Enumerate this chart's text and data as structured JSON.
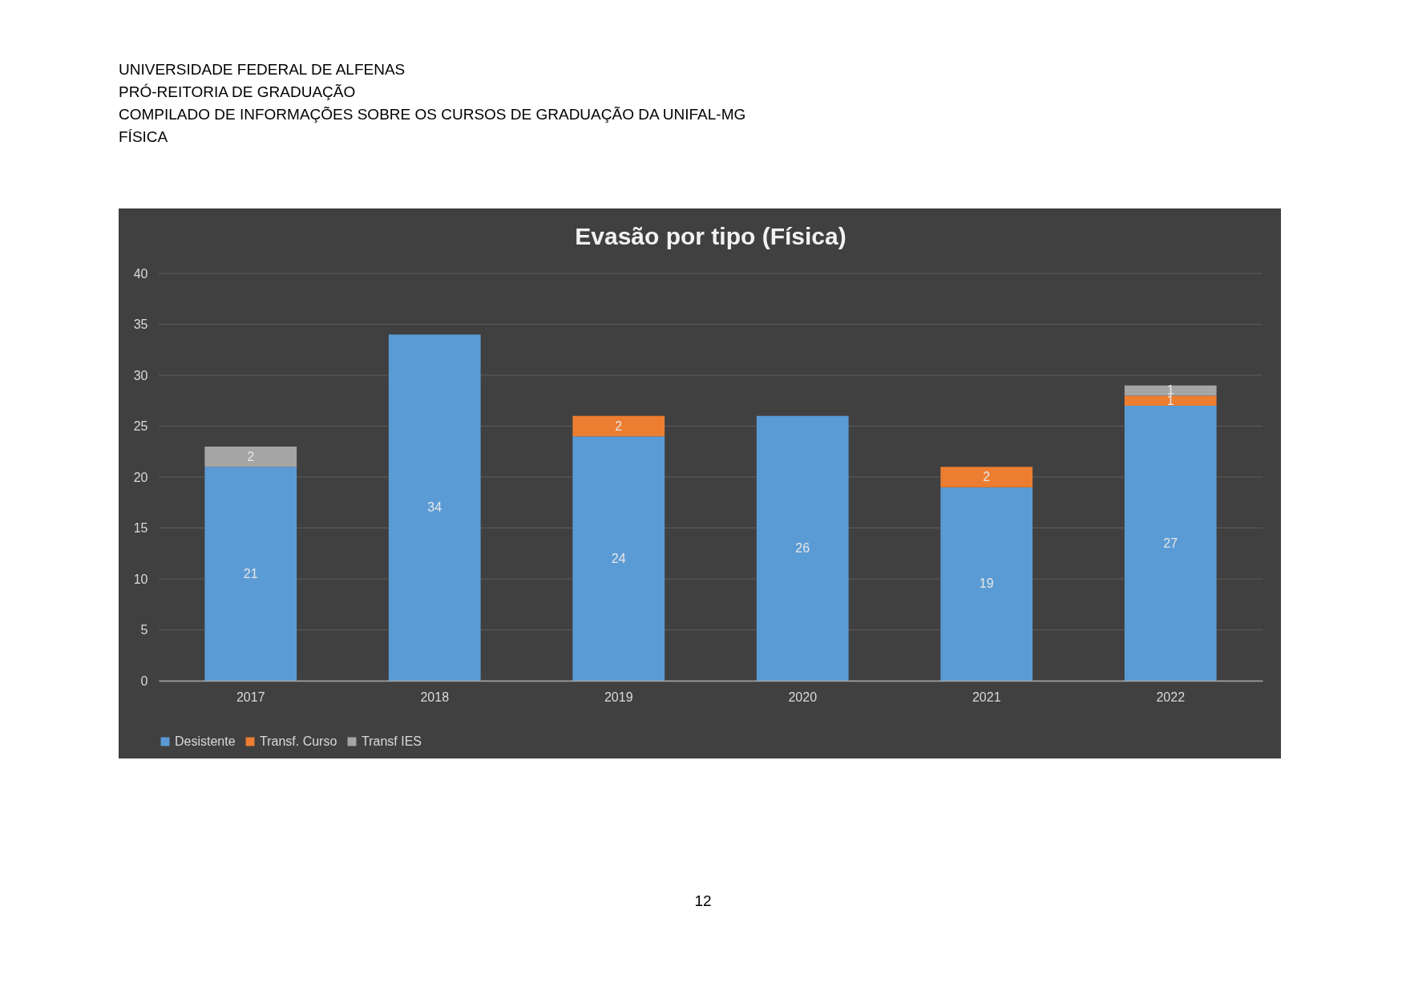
{
  "chart_data": {
    "type": "bar",
    "title": "Evasão por tipo (Física)",
    "annotations": [
      "UNIVERSIDADE FEDERAL DE ALFENAS",
      "PRÓ-REITORIA DE GRADUAÇÃO",
      "COMPILADO DE INFORMAÇÕES SOBRE OS CURSOS DE GRADUAÇÃO DA UNIFAL-MG",
      "FÍSICA",
      "12"
    ],
    "categories": [
      "2017",
      "2018",
      "2019",
      "2020",
      "2021",
      "2022"
    ],
    "series": [
      {
        "name": "Desistente",
        "color": "#5b9bd5",
        "values": [
          21,
          34,
          24,
          26,
          19,
          27
        ]
      },
      {
        "name": "Transf. Curso",
        "color": "#ed7d31",
        "values": [
          null,
          null,
          2,
          null,
          2,
          1
        ]
      },
      {
        "name": "Transf IES",
        "color": "#a5a5a5",
        "values": [
          2,
          null,
          null,
          null,
          null,
          1
        ]
      }
    ],
    "stacked": true,
    "ylim": [
      0,
      40
    ],
    "yticks": [
      0,
      5,
      10,
      15,
      20,
      25,
      30,
      35,
      40
    ],
    "grid": "y",
    "legend": "bottom",
    "data_labels": true
  }
}
